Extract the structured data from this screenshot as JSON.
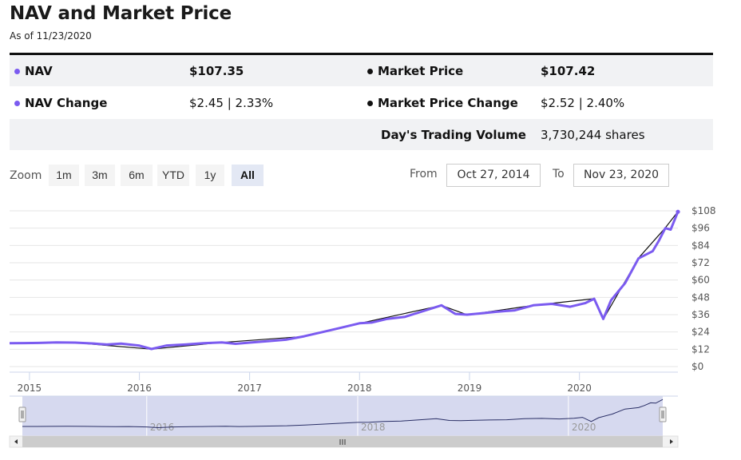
{
  "header": {
    "title": "NAV and Market Price",
    "as_of": "As of 11/23/2020"
  },
  "stats": {
    "nav_label": "NAV",
    "nav_value": "$107.35",
    "market_price_label": "Market Price",
    "market_price_value": "$107.42",
    "nav_change_label": "NAV Change",
    "nav_change_value": "$2.45 | 2.33%",
    "market_price_change_label": "Market Price Change",
    "market_price_change_value": "$2.52 | 2.40%",
    "volume_label": "Day's Trading Volume",
    "volume_value": "3,730,244 shares"
  },
  "controls": {
    "zoom_label": "Zoom",
    "zoom_buttons": [
      "1m",
      "3m",
      "6m",
      "YTD",
      "1y",
      "All"
    ],
    "active_zoom": "All",
    "from_label": "From",
    "from_value": "Oct 27, 2014",
    "to_label": "To",
    "to_value": "Nov 23, 2020"
  },
  "colors": {
    "nav": "#7b5bf0",
    "market_price": "#111111",
    "navigator_fill": "#d6d9ef",
    "navigator_line": "#2a2f66"
  },
  "chart_data": {
    "type": "line",
    "y_tick_labels": [
      "$0",
      "$12",
      "$24",
      "$36",
      "$48",
      "$60",
      "$72",
      "$84",
      "$96",
      "$108"
    ],
    "ylim": [
      0,
      108
    ],
    "x_tick_labels": [
      "2015",
      "2016",
      "2017",
      "2018",
      "2019",
      "2020"
    ],
    "xlim": [
      "2014-10-27",
      "2020-11-23"
    ],
    "grid": true,
    "navigator_labels": [
      "2016",
      "2018",
      "2020"
    ],
    "series": [
      {
        "name": "NAV",
        "x": [
          "2014-10-27",
          "2014-12-15",
          "2015-02-01",
          "2015-04-01",
          "2015-06-01",
          "2015-08-01",
          "2015-09-15",
          "2015-11-01",
          "2016-01-01",
          "2016-02-10",
          "2016-04-01",
          "2016-06-01",
          "2016-08-01",
          "2016-10-01",
          "2016-11-15",
          "2017-01-01",
          "2017-03-01",
          "2017-05-01",
          "2017-07-01",
          "2017-09-01",
          "2017-11-01",
          "2018-01-01",
          "2018-02-10",
          "2018-04-01",
          "2018-06-01",
          "2018-08-01",
          "2018-09-30",
          "2018-11-15",
          "2018-12-24",
          "2019-02-01",
          "2019-04-01",
          "2019-06-01",
          "2019-08-01",
          "2019-10-01",
          "2019-12-01",
          "2020-01-20",
          "2020-02-19",
          "2020-03-20",
          "2020-04-15",
          "2020-06-01",
          "2020-07-15",
          "2020-08-31",
          "2020-09-20",
          "2020-10-12",
          "2020-10-30",
          "2020-11-23"
        ],
        "y": [
          16.2,
          16.3,
          16.4,
          16.8,
          16.6,
          16.0,
          15.3,
          15.9,
          14.5,
          12.2,
          14.6,
          15.3,
          16.2,
          16.8,
          15.8,
          16.6,
          17.6,
          18.6,
          21.0,
          24.0,
          27.0,
          30.0,
          30.5,
          33.0,
          34.5,
          38.5,
          42.5,
          36.5,
          36.0,
          36.8,
          38.0,
          39.0,
          42.5,
          43.5,
          41.5,
          44.0,
          47.0,
          33.0,
          46.0,
          58.0,
          75.0,
          80.0,
          87.0,
          96.0,
          95.0,
          107.35
        ]
      },
      {
        "name": "Market Price",
        "x": [
          "2014-10-27",
          "2015-06-01",
          "2016-02-10",
          "2016-10-01",
          "2017-07-01",
          "2018-01-01",
          "2018-09-30",
          "2018-12-24",
          "2019-08-01",
          "2020-02-19",
          "2020-03-20",
          "2020-07-15",
          "2020-10-12",
          "2020-11-23"
        ],
        "y": [
          16.1,
          16.5,
          12.1,
          16.7,
          20.9,
          29.9,
          42.4,
          35.9,
          42.4,
          47.1,
          32.8,
          75.2,
          96.2,
          107.42
        ]
      }
    ]
  }
}
